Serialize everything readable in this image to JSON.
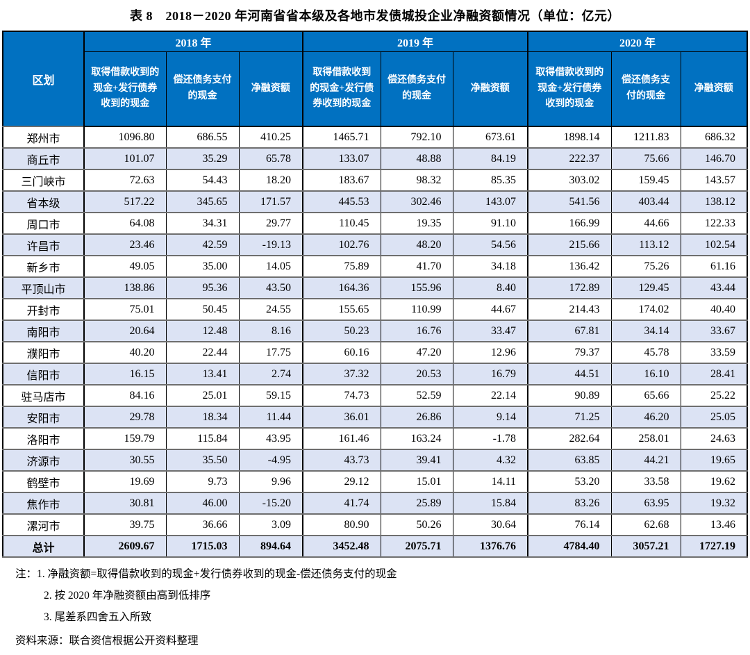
{
  "title": "表 8　2018－2020 年河南省省本级及各地市发债城投企业净融资额情况（单位：亿元）",
  "table": {
    "region_header": "区划",
    "year_groups": [
      "2018 年",
      "2019 年",
      "2020 年"
    ],
    "sub_headers": [
      "取得借款收到的现金+发行债券收到的现金",
      "偿还债务支付的现金",
      "净融资额"
    ],
    "rows": [
      {
        "region": "郑州市",
        "values": [
          "1096.80",
          "686.55",
          "410.25",
          "1465.71",
          "792.10",
          "673.61",
          "1898.14",
          "1211.83",
          "686.32"
        ]
      },
      {
        "region": "商丘市",
        "values": [
          "101.07",
          "35.29",
          "65.78",
          "133.07",
          "48.88",
          "84.19",
          "222.37",
          "75.66",
          "146.70"
        ]
      },
      {
        "region": "三门峡市",
        "values": [
          "72.63",
          "54.43",
          "18.20",
          "183.67",
          "98.32",
          "85.35",
          "303.02",
          "159.45",
          "143.57"
        ]
      },
      {
        "region": "省本级",
        "values": [
          "517.22",
          "345.65",
          "171.57",
          "445.53",
          "302.46",
          "143.07",
          "541.56",
          "403.44",
          "138.12"
        ]
      },
      {
        "region": "周口市",
        "values": [
          "64.08",
          "34.31",
          "29.77",
          "110.45",
          "19.35",
          "91.10",
          "166.99",
          "44.66",
          "122.33"
        ]
      },
      {
        "region": "许昌市",
        "values": [
          "23.46",
          "42.59",
          "-19.13",
          "102.76",
          "48.20",
          "54.56",
          "215.66",
          "113.12",
          "102.54"
        ]
      },
      {
        "region": "新乡市",
        "values": [
          "49.05",
          "35.00",
          "14.05",
          "75.89",
          "41.70",
          "34.18",
          "136.42",
          "75.26",
          "61.16"
        ]
      },
      {
        "region": "平顶山市",
        "values": [
          "138.86",
          "95.36",
          "43.50",
          "164.36",
          "155.96",
          "8.40",
          "172.89",
          "129.45",
          "43.44"
        ]
      },
      {
        "region": "开封市",
        "values": [
          "75.01",
          "50.45",
          "24.55",
          "155.65",
          "110.99",
          "44.67",
          "214.43",
          "174.02",
          "40.40"
        ]
      },
      {
        "region": "南阳市",
        "values": [
          "20.64",
          "12.48",
          "8.16",
          "50.23",
          "16.76",
          "33.47",
          "67.81",
          "34.14",
          "33.67"
        ]
      },
      {
        "region": "濮阳市",
        "values": [
          "40.20",
          "22.44",
          "17.75",
          "60.16",
          "47.20",
          "12.96",
          "79.37",
          "45.78",
          "33.59"
        ]
      },
      {
        "region": "信阳市",
        "values": [
          "16.15",
          "13.41",
          "2.74",
          "37.32",
          "20.53",
          "16.79",
          "44.51",
          "16.10",
          "28.41"
        ]
      },
      {
        "region": "驻马店市",
        "values": [
          "84.16",
          "25.01",
          "59.15",
          "74.73",
          "52.59",
          "22.14",
          "90.89",
          "65.66",
          "25.22"
        ]
      },
      {
        "region": "安阳市",
        "values": [
          "29.78",
          "18.34",
          "11.44",
          "36.01",
          "26.86",
          "9.14",
          "71.25",
          "46.20",
          "25.05"
        ]
      },
      {
        "region": "洛阳市",
        "values": [
          "159.79",
          "115.84",
          "43.95",
          "161.46",
          "163.24",
          "-1.78",
          "282.64",
          "258.01",
          "24.63"
        ]
      },
      {
        "region": "济源市",
        "values": [
          "30.55",
          "35.50",
          "-4.95",
          "43.73",
          "39.41",
          "4.32",
          "63.85",
          "44.21",
          "19.65"
        ]
      },
      {
        "region": "鹤壁市",
        "values": [
          "19.69",
          "9.73",
          "9.96",
          "29.12",
          "15.01",
          "14.11",
          "53.20",
          "33.58",
          "19.62"
        ]
      },
      {
        "region": "焦作市",
        "values": [
          "30.81",
          "46.00",
          "-15.20",
          "41.74",
          "25.89",
          "15.84",
          "83.26",
          "63.95",
          "19.32"
        ]
      },
      {
        "region": "漯河市",
        "values": [
          "39.75",
          "36.66",
          "3.09",
          "80.90",
          "50.26",
          "30.64",
          "76.14",
          "62.68",
          "13.46"
        ]
      }
    ],
    "total": {
      "region": "总计",
      "values": [
        "2609.67",
        "1715.03",
        "894.64",
        "3452.48",
        "2075.71",
        "1376.76",
        "4784.40",
        "3057.21",
        "1727.19"
      ]
    }
  },
  "notes": {
    "prefix": "注：",
    "items": [
      "1. 净融资额=取得借款收到的现金+发行债券收到的现金-偿还债务支付的现金",
      "2. 按 2020 年净融资额由高到低排序",
      "3. 尾差系四舍五入所致"
    ],
    "source": "资料来源：联合资信根据公开资料整理"
  },
  "colors": {
    "header_bg": "#0171C1",
    "alt_row_bg": "#DCE3F4",
    "header_text": "#ffffff",
    "row_divider": "#6e6e6e"
  }
}
